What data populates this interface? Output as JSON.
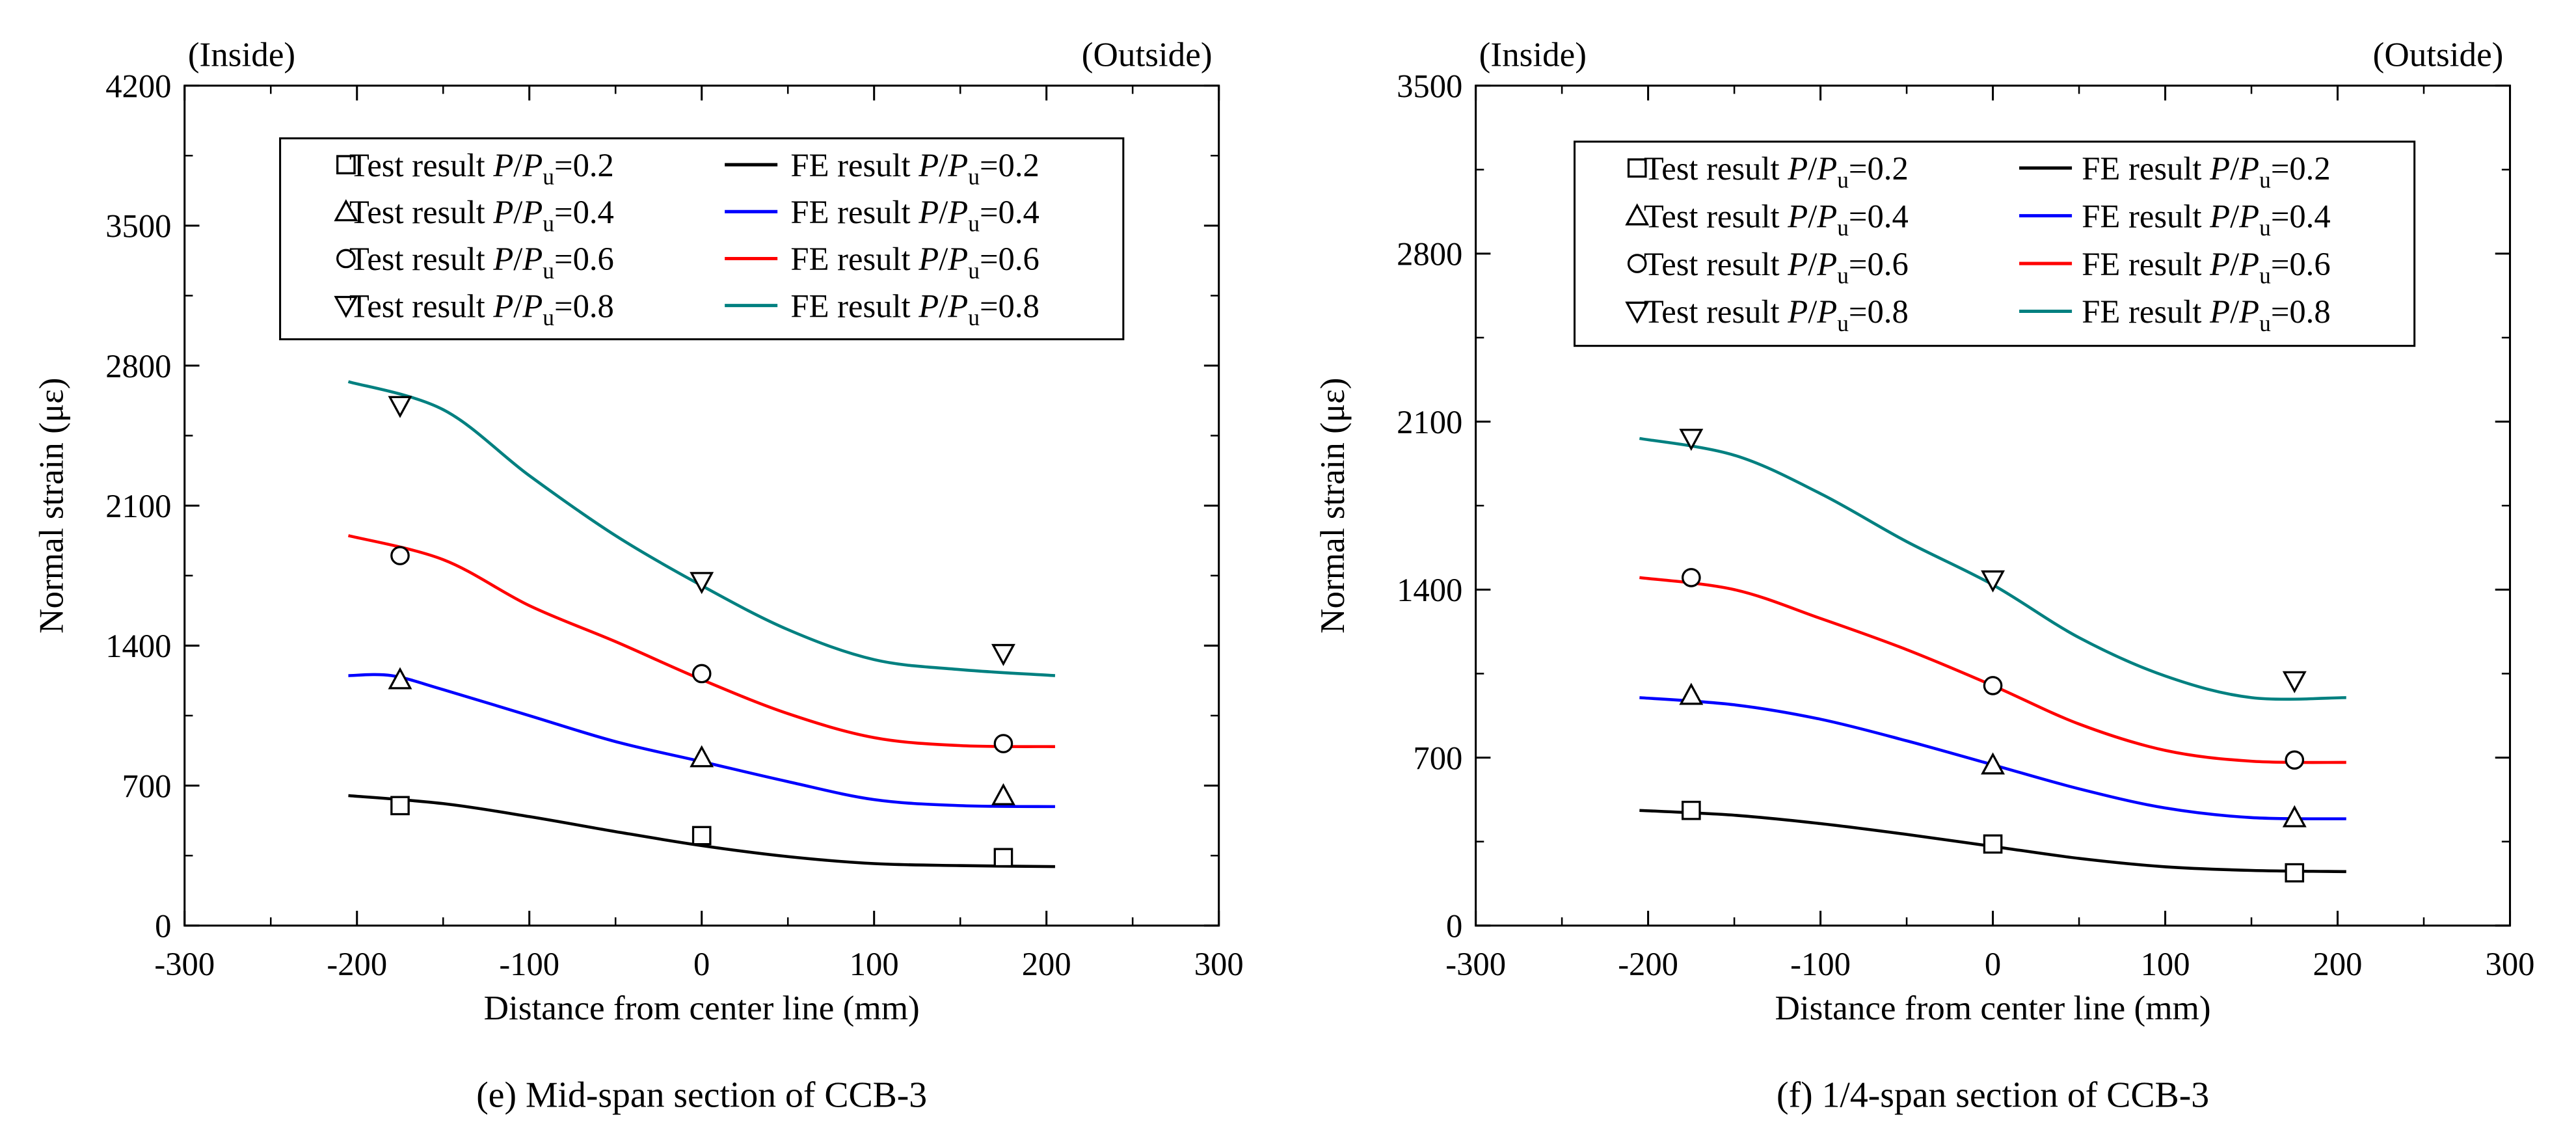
{
  "chart_data": [
    {
      "type": "line",
      "panel_label": "(e) Mid-span section of CCB-3",
      "corner_left": "(Inside)",
      "corner_right": "(Outside)",
      "xlabel": "Distance from center line (mm)",
      "ylabel": "Normal strain (με)",
      "xlim": [
        -300,
        300
      ],
      "ylim": [
        0,
        4200
      ],
      "xticks": [
        -300,
        -200,
        -100,
        0,
        100,
        200,
        300
      ],
      "yticks": [
        0,
        700,
        1400,
        2100,
        2800,
        3500,
        4200
      ],
      "legend_position": "top",
      "test_series": [
        {
          "name": "Test result P/Pu=0.2",
          "ratio": "0.2",
          "marker": "square",
          "x": [
            -175,
            0,
            175
          ],
          "y": [
            600,
            450,
            340
          ]
        },
        {
          "name": "Test result P/Pu=0.4",
          "ratio": "0.4",
          "marker": "triangle-up",
          "x": [
            -175,
            0,
            175
          ],
          "y": [
            1230,
            840,
            650
          ]
        },
        {
          "name": "Test result P/Pu=0.6",
          "ratio": "0.6",
          "marker": "circle",
          "x": [
            -175,
            0,
            175
          ],
          "y": [
            1850,
            1260,
            910
          ]
        },
        {
          "name": "Test result P/Pu=0.8",
          "ratio": "0.8",
          "marker": "triangle-down",
          "x": [
            -175,
            0,
            175
          ],
          "y": [
            2600,
            1720,
            1360
          ]
        }
      ],
      "fe_series": [
        {
          "name": "FE result P/Pu=0.2",
          "ratio": "0.2",
          "color": "#000000",
          "x": [
            -205,
            -150,
            -100,
            -50,
            0,
            50,
            100,
            150,
            205
          ],
          "y": [
            650,
            610,
            545,
            470,
            400,
            345,
            310,
            300,
            295
          ]
        },
        {
          "name": "FE result P/Pu=0.4",
          "ratio": "0.4",
          "color": "#0000ff",
          "x": [
            -205,
            -180,
            -150,
            -100,
            -50,
            0,
            50,
            100,
            150,
            205
          ],
          "y": [
            1250,
            1250,
            1180,
            1050,
            920,
            820,
            720,
            630,
            600,
            595
          ]
        },
        {
          "name": "FE result P/Pu=0.6",
          "ratio": "0.6",
          "color": "#ff0000",
          "x": [
            -205,
            -150,
            -100,
            -50,
            0,
            50,
            100,
            150,
            205
          ],
          "y": [
            1950,
            1830,
            1600,
            1420,
            1230,
            1060,
            940,
            900,
            895
          ]
        },
        {
          "name": "FE result P/Pu=0.8",
          "ratio": "0.8",
          "color": "#008080",
          "x": [
            -205,
            -150,
            -100,
            -50,
            0,
            50,
            100,
            150,
            205
          ],
          "y": [
            2720,
            2580,
            2250,
            1950,
            1700,
            1480,
            1330,
            1280,
            1250
          ]
        }
      ]
    },
    {
      "type": "line",
      "panel_label": "(f) 1/4-span section of CCB-3",
      "corner_left": "(Inside)",
      "corner_right": "(Outside)",
      "xlabel": "Distance from center line (mm)",
      "ylabel": "Normal strain (με)",
      "xlim": [
        -300,
        300
      ],
      "ylim": [
        0,
        3500
      ],
      "xticks": [
        -300,
        -200,
        -100,
        0,
        100,
        200,
        300
      ],
      "yticks": [
        0,
        700,
        1400,
        2100,
        2800,
        3500
      ],
      "legend_position": "top",
      "test_series": [
        {
          "name": "Test result P/Pu=0.2",
          "ratio": "0.2",
          "marker": "square",
          "x": [
            -175,
            0,
            175
          ],
          "y": [
            480,
            340,
            220
          ]
        },
        {
          "name": "Test result P/Pu=0.4",
          "ratio": "0.4",
          "marker": "triangle-up",
          "x": [
            -175,
            0,
            175
          ],
          "y": [
            960,
            670,
            450
          ]
        },
        {
          "name": "Test result P/Pu=0.6",
          "ratio": "0.6",
          "marker": "circle",
          "x": [
            -175,
            0,
            175
          ],
          "y": [
            1450,
            1000,
            690
          ]
        },
        {
          "name": "Test result P/Pu=0.8",
          "ratio": "0.8",
          "marker": "triangle-down",
          "x": [
            -175,
            0,
            175
          ],
          "y": [
            2030,
            1440,
            1020
          ]
        }
      ],
      "fe_series": [
        {
          "name": "FE result P/Pu=0.2",
          "ratio": "0.2",
          "color": "#000000",
          "x": [
            -205,
            -150,
            -100,
            -50,
            0,
            50,
            100,
            150,
            205
          ],
          "y": [
            480,
            460,
            425,
            380,
            330,
            280,
            245,
            230,
            225
          ]
        },
        {
          "name": "FE result P/Pu=0.4",
          "ratio": "0.4",
          "color": "#0000ff",
          "x": [
            -205,
            -150,
            -100,
            -50,
            0,
            50,
            100,
            150,
            205
          ],
          "y": [
            950,
            920,
            860,
            770,
            670,
            570,
            490,
            450,
            445
          ]
        },
        {
          "name": "FE result P/Pu=0.6",
          "ratio": "0.6",
          "color": "#ff0000",
          "x": [
            -205,
            -150,
            -100,
            -50,
            0,
            50,
            100,
            150,
            205
          ],
          "y": [
            1450,
            1400,
            1280,
            1150,
            1000,
            840,
            730,
            685,
            680
          ]
        },
        {
          "name": "FE result P/Pu=0.8",
          "ratio": "0.8",
          "color": "#008080",
          "x": [
            -205,
            -150,
            -100,
            -50,
            0,
            50,
            100,
            150,
            205
          ],
          "y": [
            2030,
            1960,
            1800,
            1600,
            1420,
            1200,
            1040,
            950,
            950
          ]
        }
      ]
    }
  ]
}
